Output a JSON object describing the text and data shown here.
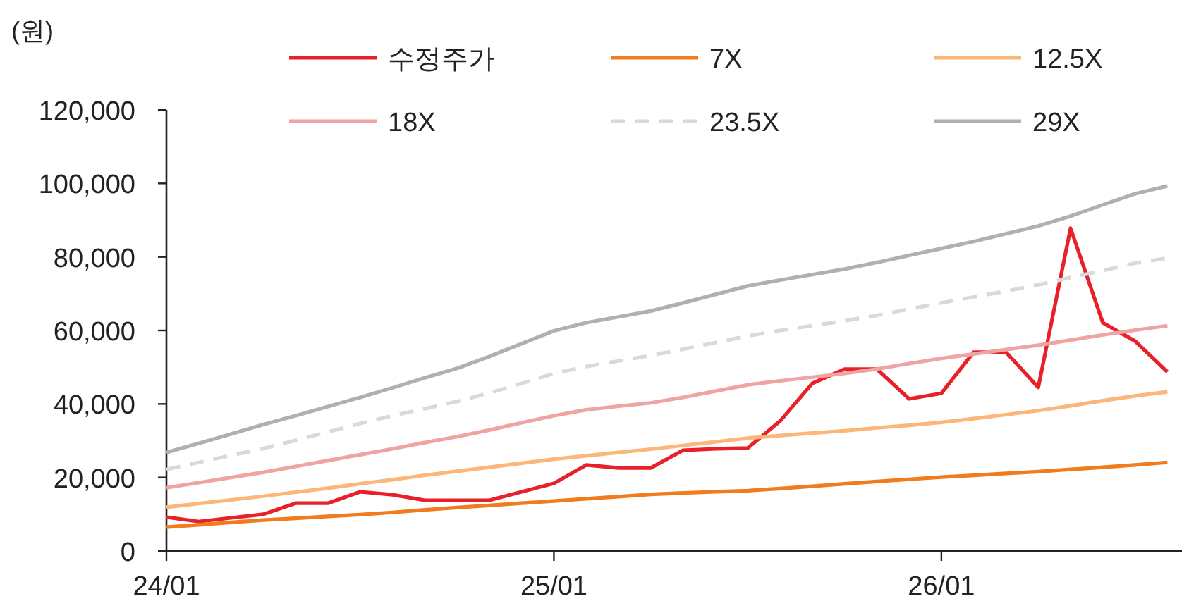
{
  "chart_data": {
    "type": "line",
    "ylabel": "(원)",
    "legend": "top",
    "ylim": [
      0,
      120000
    ],
    "categories": [
      "24/01",
      null,
      null,
      null,
      null,
      null,
      null,
      null,
      null,
      null,
      null,
      null,
      "25/01",
      null,
      null,
      null,
      null,
      null,
      null,
      null,
      null,
      null,
      null,
      null,
      "26/01",
      null,
      null,
      null,
      null,
      null,
      null,
      null
    ],
    "yticks": [
      0,
      {
        "value": 20000,
        "label": "20,000"
      },
      {
        "value": 40000,
        "label": "40,000"
      },
      {
        "value": 60000,
        "label": "60,000"
      },
      {
        "value": 80000,
        "label": "80,000"
      },
      {
        "value": 100000,
        "label": "100,000"
      },
      {
        "value": 120000,
        "label": "120,000"
      }
    ],
    "series": [
      {
        "name": "수정주가",
        "color": "#e8202a",
        "values": [
          9200,
          8000,
          9000,
          10000,
          13000,
          13000,
          16100,
          15300,
          13800,
          13800,
          13800,
          16100,
          18400,
          23400,
          22600,
          22600,
          27400,
          27800,
          28000,
          35300,
          45600,
          49500,
          49500,
          41400,
          42900,
          54100,
          54100,
          44500,
          87800,
          62100,
          57100,
          48700
        ]
      },
      {
        "name": "7X",
        "color": "#f07c1e",
        "values": [
          6500,
          7100,
          7800,
          8400,
          8900,
          9400,
          9900,
          10500,
          11200,
          11800,
          12400,
          13000,
          13600,
          14200,
          14800,
          15400,
          15800,
          16100,
          16400,
          17000,
          17600,
          18300,
          18900,
          19500,
          20100,
          20600,
          21100,
          21600,
          22200,
          22800,
          23400,
          24100
        ]
      },
      {
        "name": "12.5X",
        "color": "#fbb67a",
        "values": [
          11900,
          12900,
          13900,
          14900,
          16000,
          17100,
          18300,
          19400,
          20600,
          21700,
          22800,
          23900,
          25000,
          25900,
          26800,
          27700,
          28700,
          29700,
          30700,
          31400,
          32100,
          32700,
          33500,
          34200,
          35000,
          36000,
          37100,
          38200,
          39500,
          40900,
          42200,
          43300
        ]
      },
      {
        "name": "18X",
        "color": "#f0a3a3",
        "values": [
          17200,
          18600,
          20000,
          21400,
          23000,
          24600,
          26200,
          27800,
          29500,
          31100,
          32900,
          34900,
          36800,
          38400,
          39400,
          40300,
          41800,
          43500,
          45200,
          46300,
          47300,
          48300,
          49500,
          51000,
          52400,
          53600,
          54800,
          56000,
          57400,
          58800,
          60100,
          61300
        ]
      },
      {
        "name": "23.5X",
        "color": "#d9d9d9",
        "line_style": "dashed",
        "values": [
          22200,
          24100,
          26000,
          27900,
          30100,
          32400,
          34700,
          36800,
          38700,
          40700,
          43000,
          45600,
          48300,
          50200,
          51700,
          53200,
          54900,
          56700,
          58500,
          60000,
          61300,
          62600,
          64100,
          65800,
          67500,
          69100,
          70700,
          72400,
          74400,
          76300,
          78300,
          79700
        ]
      },
      {
        "name": "29X",
        "color": "#b0b0b0",
        "values": [
          26800,
          29300,
          31800,
          34400,
          36800,
          39300,
          41800,
          44400,
          47100,
          49700,
          52900,
          56400,
          59900,
          62100,
          63700,
          65300,
          67500,
          69800,
          72100,
          73700,
          75200,
          76700,
          78500,
          80400,
          82300,
          84200,
          86300,
          88400,
          91100,
          94200,
          97200,
          99300
        ]
      }
    ]
  }
}
